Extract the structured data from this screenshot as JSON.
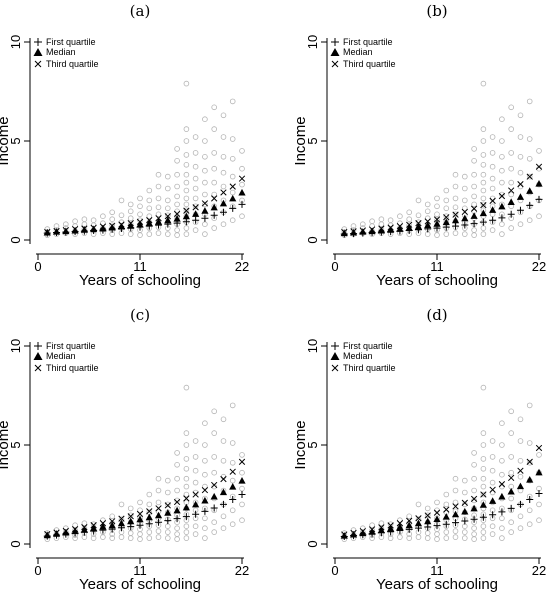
{
  "chart_data": [
    {
      "type": "scatter",
      "title": "(a)",
      "xlabel": "Years of schooling",
      "ylabel": "Income",
      "xlim": [
        0,
        22
      ],
      "ylim": [
        0,
        10
      ],
      "x_ticks": [
        0,
        11,
        22
      ],
      "y_ticks": [
        0,
        5,
        10
      ],
      "legend": {
        "placement": "top-left",
        "entries": [
          "First quartile",
          "Median",
          "Third quartile"
        ]
      },
      "series": [
        {
          "name": "First quartile",
          "marker": "plus",
          "color": "#000000",
          "x": [
            1,
            2,
            3,
            4,
            5,
            6,
            7,
            8,
            9,
            10,
            11,
            12,
            13,
            14,
            15,
            16,
            17,
            18,
            19,
            20,
            21,
            22
          ],
          "y": [
            0.35,
            0.38,
            0.4,
            0.42,
            0.45,
            0.48,
            0.5,
            0.55,
            0.58,
            0.62,
            0.65,
            0.7,
            0.75,
            0.8,
            0.85,
            0.92,
            1.0,
            1.1,
            1.25,
            1.4,
            1.6,
            1.8
          ]
        },
        {
          "name": "Median",
          "marker": "triangle",
          "color": "#000000",
          "x": [
            1,
            2,
            3,
            4,
            5,
            6,
            7,
            8,
            9,
            10,
            11,
            12,
            13,
            14,
            15,
            16,
            17,
            18,
            19,
            20,
            21,
            22
          ],
          "y": [
            0.38,
            0.42,
            0.45,
            0.48,
            0.52,
            0.55,
            0.58,
            0.63,
            0.68,
            0.72,
            0.78,
            0.85,
            0.92,
            1.0,
            1.08,
            1.2,
            1.32,
            1.48,
            1.65,
            1.85,
            2.1,
            2.4
          ]
        },
        {
          "name": "Third quartile",
          "marker": "cross",
          "color": "#000000",
          "x": [
            1,
            2,
            3,
            4,
            5,
            6,
            7,
            8,
            9,
            10,
            11,
            12,
            13,
            14,
            15,
            16,
            17,
            18,
            19,
            20,
            21,
            22
          ],
          "y": [
            0.4,
            0.45,
            0.5,
            0.55,
            0.58,
            0.62,
            0.68,
            0.72,
            0.78,
            0.85,
            0.92,
            1.0,
            1.1,
            1.2,
            1.32,
            1.48,
            1.65,
            1.85,
            2.1,
            2.4,
            2.7,
            3.1
          ]
        }
      ]
    },
    {
      "type": "scatter",
      "title": "(b)",
      "xlabel": "Years of schooling",
      "ylabel": "Income",
      "xlim": [
        0,
        22
      ],
      "ylim": [
        0,
        10
      ],
      "x_ticks": [
        0,
        11,
        22
      ],
      "y_ticks": [
        0,
        5,
        10
      ],
      "legend": {
        "placement": "top-left",
        "entries": [
          "First quartile",
          "Median",
          "Third quartile"
        ]
      },
      "series": [
        {
          "name": "First quartile",
          "marker": "plus",
          "color": "#000000",
          "x": [
            1,
            2,
            3,
            4,
            5,
            6,
            7,
            8,
            9,
            10,
            11,
            12,
            13,
            14,
            15,
            16,
            17,
            18,
            19,
            20,
            21,
            22
          ],
          "y": [
            0.3,
            0.32,
            0.35,
            0.38,
            0.4,
            0.42,
            0.45,
            0.48,
            0.52,
            0.56,
            0.6,
            0.65,
            0.7,
            0.76,
            0.83,
            0.9,
            1.0,
            1.12,
            1.3,
            1.5,
            1.75,
            2.05
          ]
        },
        {
          "name": "Median",
          "marker": "triangle",
          "color": "#000000",
          "x": [
            1,
            2,
            3,
            4,
            5,
            6,
            7,
            8,
            9,
            10,
            11,
            12,
            13,
            14,
            15,
            16,
            17,
            18,
            19,
            20,
            21,
            22
          ],
          "y": [
            0.35,
            0.38,
            0.42,
            0.45,
            0.48,
            0.52,
            0.56,
            0.62,
            0.68,
            0.75,
            0.82,
            0.9,
            1.0,
            1.1,
            1.22,
            1.36,
            1.52,
            1.7,
            1.92,
            2.18,
            2.48,
            2.85
          ]
        },
        {
          "name": "Third quartile",
          "marker": "cross",
          "color": "#000000",
          "x": [
            1,
            2,
            3,
            4,
            5,
            6,
            7,
            8,
            9,
            10,
            11,
            12,
            13,
            14,
            15,
            16,
            17,
            18,
            19,
            20,
            21,
            22
          ],
          "y": [
            0.4,
            0.44,
            0.48,
            0.53,
            0.58,
            0.63,
            0.7,
            0.77,
            0.85,
            0.94,
            1.04,
            1.15,
            1.28,
            1.42,
            1.58,
            1.76,
            1.98,
            2.22,
            2.5,
            2.82,
            3.2,
            3.7
          ]
        }
      ]
    },
    {
      "type": "scatter",
      "title": "(c)",
      "xlabel": "Years of schooling",
      "ylabel": "Income",
      "xlim": [
        0,
        22
      ],
      "ylim": [
        0,
        10
      ],
      "x_ticks": [
        0,
        11,
        22
      ],
      "y_ticks": [
        0,
        5,
        10
      ],
      "legend": {
        "placement": "top-left",
        "entries": [
          "First quartile",
          "Median",
          "Third quartile"
        ]
      },
      "series": [
        {
          "name": "First quartile",
          "marker": "plus",
          "color": "#000000",
          "x": [
            1,
            2,
            3,
            4,
            5,
            6,
            7,
            8,
            9,
            10,
            11,
            12,
            13,
            14,
            15,
            16,
            17,
            18,
            19,
            20,
            21,
            22
          ],
          "y": [
            0.4,
            0.45,
            0.5,
            0.55,
            0.6,
            0.65,
            0.7,
            0.75,
            0.82,
            0.88,
            0.95,
            1.02,
            1.1,
            1.18,
            1.28,
            1.38,
            1.5,
            1.65,
            1.82,
            2.0,
            2.25,
            2.5
          ]
        },
        {
          "name": "Median",
          "marker": "triangle",
          "color": "#000000",
          "x": [
            1,
            2,
            3,
            4,
            5,
            6,
            7,
            8,
            9,
            10,
            11,
            12,
            13,
            14,
            15,
            16,
            17,
            18,
            19,
            20,
            21,
            22
          ],
          "y": [
            0.45,
            0.52,
            0.58,
            0.65,
            0.72,
            0.8,
            0.88,
            0.95,
            1.05,
            1.15,
            1.25,
            1.35,
            1.45,
            1.58,
            1.7,
            1.85,
            2.0,
            2.2,
            2.4,
            2.62,
            2.9,
            3.2
          ]
        },
        {
          "name": "Third quartile",
          "marker": "cross",
          "color": "#000000",
          "x": [
            1,
            2,
            3,
            4,
            5,
            6,
            7,
            8,
            9,
            10,
            11,
            12,
            13,
            14,
            15,
            16,
            17,
            18,
            19,
            20,
            21,
            22
          ],
          "y": [
            0.5,
            0.58,
            0.66,
            0.75,
            0.85,
            0.95,
            1.05,
            1.15,
            1.28,
            1.4,
            1.52,
            1.65,
            1.8,
            1.95,
            2.12,
            2.3,
            2.5,
            2.72,
            2.98,
            3.28,
            3.65,
            4.15
          ]
        }
      ]
    },
    {
      "type": "scatter",
      "title": "(d)",
      "xlabel": "Years of schooling",
      "ylabel": "Income",
      "xlim": [
        0,
        22
      ],
      "ylim": [
        0,
        10
      ],
      "x_ticks": [
        0,
        11,
        22
      ],
      "y_ticks": [
        0,
        5,
        10
      ],
      "legend": {
        "placement": "top-left",
        "entries": [
          "First quartile",
          "Median",
          "Third quartile"
        ]
      },
      "series": [
        {
          "name": "First quartile",
          "marker": "plus",
          "color": "#000000",
          "x": [
            1,
            2,
            3,
            4,
            5,
            6,
            7,
            8,
            9,
            10,
            11,
            12,
            13,
            14,
            15,
            16,
            17,
            18,
            19,
            20,
            21,
            22
          ],
          "y": [
            0.38,
            0.42,
            0.47,
            0.52,
            0.57,
            0.62,
            0.68,
            0.74,
            0.8,
            0.86,
            0.93,
            1.0,
            1.08,
            1.16,
            1.25,
            1.35,
            1.48,
            1.62,
            1.8,
            2.0,
            2.25,
            2.55
          ]
        },
        {
          "name": "Median",
          "marker": "triangle",
          "color": "#000000",
          "x": [
            1,
            2,
            3,
            4,
            5,
            6,
            7,
            8,
            9,
            10,
            11,
            12,
            13,
            14,
            15,
            16,
            17,
            18,
            19,
            20,
            21,
            22
          ],
          "y": [
            0.42,
            0.48,
            0.55,
            0.62,
            0.7,
            0.78,
            0.86,
            0.95,
            1.05,
            1.15,
            1.26,
            1.38,
            1.5,
            1.64,
            1.8,
            1.98,
            2.18,
            2.4,
            2.65,
            2.92,
            3.25,
            3.62
          ]
        },
        {
          "name": "Third quartile",
          "marker": "cross",
          "color": "#000000",
          "x": [
            1,
            2,
            3,
            4,
            5,
            6,
            7,
            8,
            9,
            10,
            11,
            12,
            13,
            14,
            15,
            16,
            17,
            18,
            19,
            20,
            21,
            22
          ],
          "y": [
            0.48,
            0.56,
            0.65,
            0.74,
            0.84,
            0.94,
            1.05,
            1.17,
            1.3,
            1.44,
            1.58,
            1.74,
            1.9,
            2.08,
            2.28,
            2.5,
            2.74,
            3.02,
            3.34,
            3.7,
            4.15,
            4.85
          ]
        }
      ]
    }
  ],
  "background_points": {
    "marker": "open-circle",
    "color": "#b4b4b4",
    "x": [
      1,
      1,
      1,
      2,
      2,
      2,
      3,
      3,
      3,
      4,
      4,
      4,
      4,
      5,
      5,
      5,
      5,
      6,
      6,
      6,
      6,
      7,
      7,
      7,
      7,
      8,
      8,
      8,
      8,
      8,
      9,
      9,
      9,
      9,
      9,
      10,
      10,
      10,
      10,
      10,
      10,
      11,
      11,
      11,
      11,
      11,
      11,
      11,
      12,
      12,
      12,
      12,
      12,
      12,
      12,
      13,
      13,
      13,
      13,
      13,
      13,
      13,
      13,
      14,
      14,
      14,
      14,
      14,
      14,
      14,
      14,
      15,
      15,
      15,
      15,
      15,
      15,
      15,
      15,
      15,
      15,
      15,
      16,
      16,
      16,
      16,
      16,
      16,
      16,
      16,
      16,
      16,
      16,
      16,
      16,
      16,
      16,
      17,
      17,
      17,
      17,
      17,
      17,
      17,
      17,
      17,
      17,
      18,
      18,
      18,
      18,
      18,
      18,
      18,
      18,
      18,
      18,
      19,
      19,
      19,
      19,
      19,
      19,
      19,
      19,
      19,
      20,
      20,
      20,
      20,
      20,
      20,
      20,
      20,
      21,
      21,
      21,
      21,
      21,
      21,
      21,
      22,
      22,
      22,
      22,
      22
    ],
    "y": [
      0.25,
      0.4,
      0.55,
      0.3,
      0.5,
      0.7,
      0.35,
      0.6,
      0.8,
      0.3,
      0.45,
      0.7,
      0.95,
      0.35,
      0.55,
      0.8,
      1.05,
      0.3,
      0.5,
      0.75,
      1.0,
      0.35,
      0.6,
      0.85,
      1.2,
      0.3,
      0.5,
      0.75,
      1.05,
      1.4,
      0.35,
      0.6,
      0.9,
      1.25,
      2.0,
      0.3,
      0.55,
      0.8,
      1.1,
      1.45,
      1.8,
      0.25,
      0.5,
      0.75,
      1.0,
      1.3,
      1.7,
      2.1,
      0.3,
      0.6,
      0.9,
      1.2,
      1.6,
      2.0,
      2.5,
      0.35,
      0.65,
      0.95,
      1.3,
      1.65,
      2.1,
      2.7,
      3.3,
      0.3,
      0.6,
      0.9,
      1.25,
      1.6,
      2.0,
      2.6,
      3.2,
      0.25,
      0.5,
      0.8,
      1.1,
      1.45,
      1.8,
      2.2,
      2.7,
      3.3,
      4.0,
      4.6,
      0.3,
      0.6,
      0.9,
      1.2,
      1.5,
      1.8,
      2.1,
      2.5,
      2.9,
      3.3,
      3.8,
      4.3,
      5.0,
      5.6,
      7.9,
      0.5,
      0.9,
      1.3,
      1.7,
      2.1,
      2.6,
      3.1,
      3.7,
      4.4,
      5.2,
      0.3,
      0.8,
      1.3,
      1.8,
      2.3,
      2.9,
      3.5,
      4.2,
      5.0,
      6.1,
      0.6,
      1.1,
      1.7,
      2.3,
      2.9,
      3.6,
      4.4,
      5.6,
      6.7,
      0.8,
      1.4,
      2.0,
      2.7,
      3.4,
      4.2,
      5.2,
      6.3,
      1.0,
      1.7,
      2.4,
      3.2,
      4.1,
      5.1,
      7.0,
      1.2,
      2.0,
      2.8,
      3.6,
      4.5
    ]
  }
}
